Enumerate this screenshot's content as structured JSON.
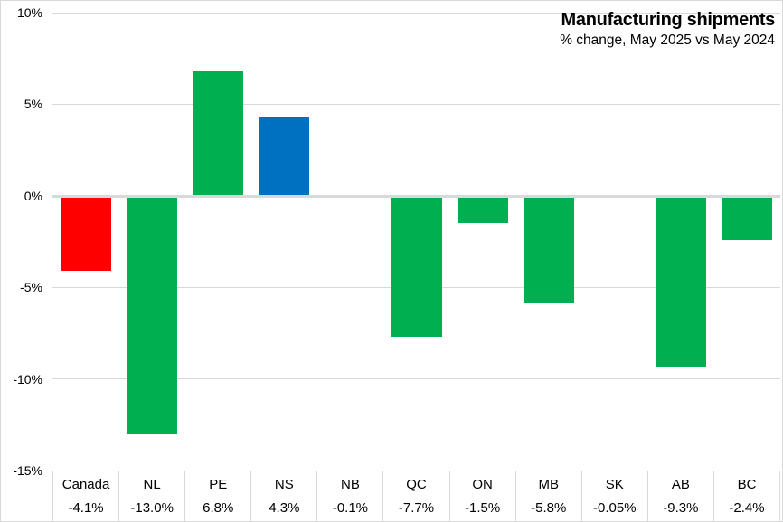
{
  "chart_data": {
    "type": "bar",
    "title": "Manufacturing shipments",
    "subtitle": "% change, May 2025 vs May 2024",
    "categories": [
      "Canada",
      "NL",
      "PE",
      "NS",
      "NB",
      "QC",
      "ON",
      "MB",
      "SK",
      "AB",
      "BC"
    ],
    "values": [
      -4.1,
      -13.0,
      6.8,
      4.3,
      -0.1,
      -7.7,
      -1.5,
      -5.8,
      -0.05,
      -9.3,
      -2.4
    ],
    "value_labels": [
      "-4.1%",
      "-13.0%",
      "6.8%",
      "4.3%",
      "-0.1%",
      "-7.7%",
      "-1.5%",
      "-5.8%",
      "-0.05%",
      "-9.3%",
      "-2.4%"
    ],
    "bar_colors": [
      "#FF0000",
      "#00B050",
      "#00B050",
      "#0070C0",
      "#00B050",
      "#00B050",
      "#00B050",
      "#00B050",
      "#00B050",
      "#00B050",
      "#00B050"
    ],
    "color_meaning": {
      "canada_total": "#FF0000",
      "nova_scotia_highlight": "#0070C0",
      "other_provinces": "#00B050"
    },
    "ylim": [
      -15,
      10
    ],
    "yticks": [
      {
        "value": 10,
        "label": "10%"
      },
      {
        "value": 5,
        "label": "5%"
      },
      {
        "value": 0,
        "label": "0%"
      },
      {
        "value": -5,
        "label": "-5%"
      },
      {
        "value": -10,
        "label": "-10%"
      },
      {
        "value": -15,
        "label": "-15%"
      }
    ],
    "grid": true,
    "gridline_color": "#D9D9D9",
    "legend_position": "none",
    "data_table_shown": true
  }
}
